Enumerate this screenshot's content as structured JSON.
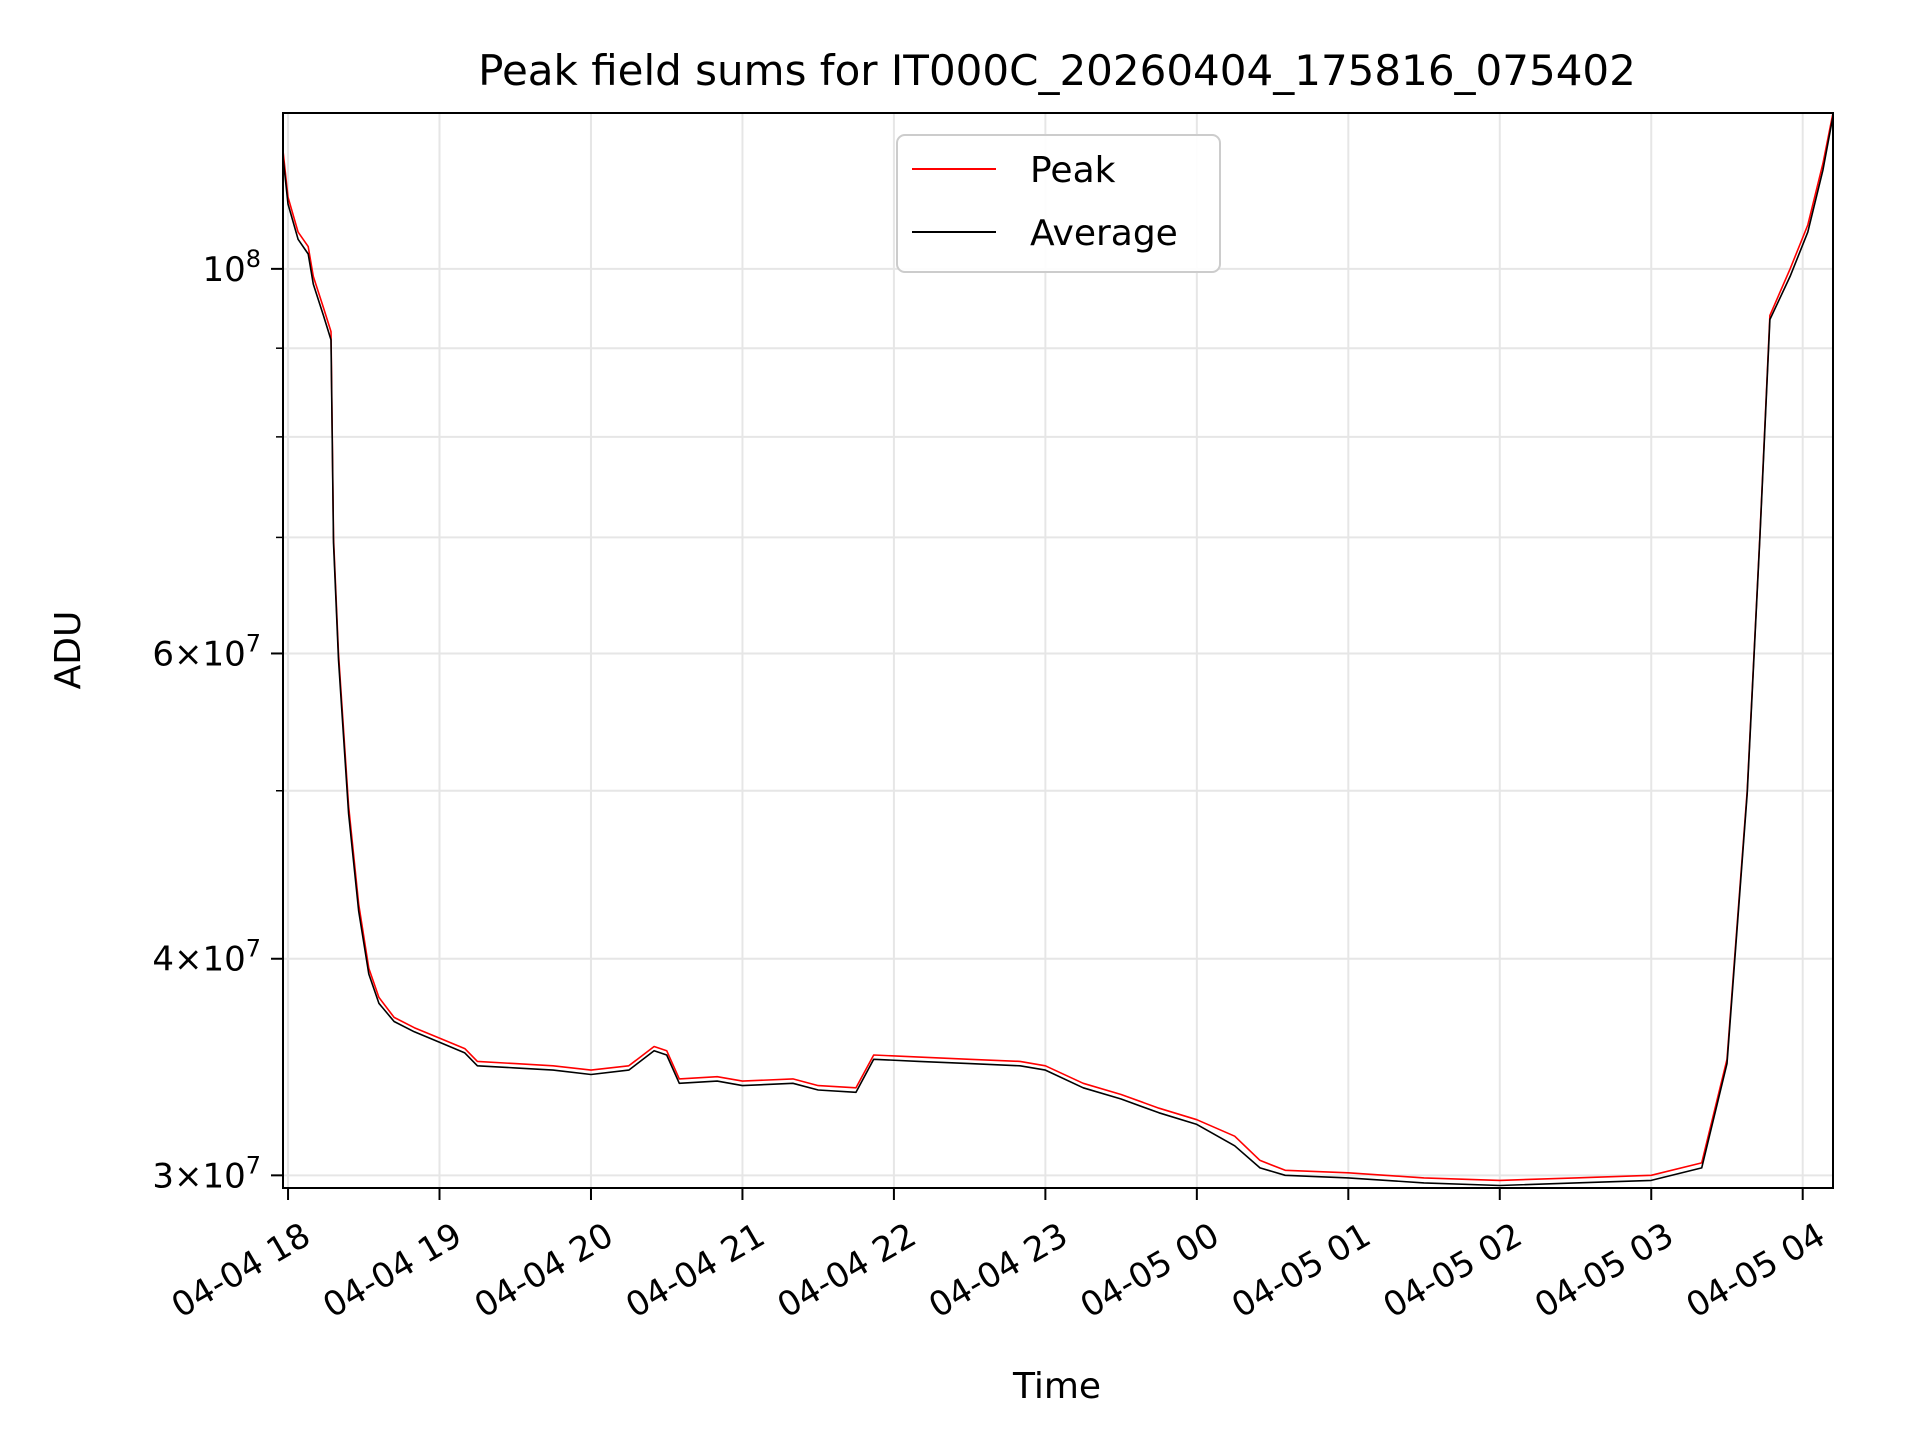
{
  "chart_data": {
    "type": "line",
    "title": "Peak field sums for IT000C_20260404_175816_075402",
    "xlabel": "Time",
    "ylabel": "ADU",
    "yscale": "log",
    "grid": true,
    "legend_placement": "upper center",
    "xlim": [
      "2026-04-04 17:58",
      "2026-04-05 04:12"
    ],
    "ylim": [
      29500000,
      123000000
    ],
    "x_ticks": [
      {
        "value": "2026-04-04 18:00",
        "label": "04-04 18"
      },
      {
        "value": "2026-04-04 19:00",
        "label": "04-04 19"
      },
      {
        "value": "2026-04-04 20:00",
        "label": "04-04 20"
      },
      {
        "value": "2026-04-04 21:00",
        "label": "04-04 21"
      },
      {
        "value": "2026-04-04 22:00",
        "label": "04-04 22"
      },
      {
        "value": "2026-04-04 23:00",
        "label": "04-04 23"
      },
      {
        "value": "2026-04-05 00:00",
        "label": "04-05 00"
      },
      {
        "value": "2026-04-05 01:00",
        "label": "04-05 01"
      },
      {
        "value": "2026-04-05 02:00",
        "label": "04-05 02"
      },
      {
        "value": "2026-04-05 03:00",
        "label": "04-05 03"
      },
      {
        "value": "2026-04-05 04:00",
        "label": "04-05 04"
      }
    ],
    "y_major_ticks": [
      {
        "value": 30000000,
        "mantissa": "3",
        "exp": "7"
      },
      {
        "value": 40000000,
        "mantissa": "4",
        "exp": "7"
      },
      {
        "value": 60000000,
        "mantissa": "6",
        "exp": "7"
      },
      {
        "value": 100000000,
        "mantissa": "",
        "exp": "8"
      }
    ],
    "y_minor_ticks": [
      50000000,
      70000000,
      80000000,
      90000000
    ],
    "series": [
      {
        "name": "Peak",
        "color": "#ff0000",
        "points": [
          [
            "2026-04-04 17:58",
            117000000
          ],
          [
            "2026-04-04 18:00",
            110000000
          ],
          [
            "2026-04-04 18:04",
            105000000
          ],
          [
            "2026-04-04 18:08",
            103000000
          ],
          [
            "2026-04-04 18:10",
            99000000
          ],
          [
            "2026-04-04 18:14",
            95000000
          ],
          [
            "2026-04-04 18:17",
            92000000
          ],
          [
            "2026-04-04 18:18",
            70000000
          ],
          [
            "2026-04-04 18:20",
            60000000
          ],
          [
            "2026-04-04 18:24",
            49000000
          ],
          [
            "2026-04-04 18:28",
            43000000
          ],
          [
            "2026-04-04 18:32",
            39500000
          ],
          [
            "2026-04-04 18:36",
            38000000
          ],
          [
            "2026-04-04 18:42",
            37000000
          ],
          [
            "2026-04-04 18:50",
            36500000
          ],
          [
            "2026-04-04 19:00",
            36000000
          ],
          [
            "2026-04-04 19:10",
            35500000
          ],
          [
            "2026-04-04 19:15",
            34900000
          ],
          [
            "2026-04-04 19:30",
            34800000
          ],
          [
            "2026-04-04 19:45",
            34700000
          ],
          [
            "2026-04-04 20:00",
            34500000
          ],
          [
            "2026-04-04 20:15",
            34700000
          ],
          [
            "2026-04-04 20:25",
            35600000
          ],
          [
            "2026-04-04 20:30",
            35400000
          ],
          [
            "2026-04-04 20:35",
            34100000
          ],
          [
            "2026-04-04 20:50",
            34200000
          ],
          [
            "2026-04-04 21:00",
            34000000
          ],
          [
            "2026-04-04 21:20",
            34100000
          ],
          [
            "2026-04-04 21:30",
            33800000
          ],
          [
            "2026-04-04 21:45",
            33700000
          ],
          [
            "2026-04-04 21:52",
            35200000
          ],
          [
            "2026-04-04 22:10",
            35100000
          ],
          [
            "2026-04-04 22:30",
            35000000
          ],
          [
            "2026-04-04 22:50",
            34900000
          ],
          [
            "2026-04-04 23:00",
            34700000
          ],
          [
            "2026-04-04 23:15",
            33900000
          ],
          [
            "2026-04-04 23:30",
            33400000
          ],
          [
            "2026-04-04 23:45",
            32800000
          ],
          [
            "2026-04-05 00:00",
            32300000
          ],
          [
            "2026-04-05 00:15",
            31600000
          ],
          [
            "2026-04-05 00:25",
            30600000
          ],
          [
            "2026-04-05 00:35",
            30200000
          ],
          [
            "2026-04-05 01:00",
            30100000
          ],
          [
            "2026-04-05 01:30",
            29900000
          ],
          [
            "2026-04-05 02:00",
            29800000
          ],
          [
            "2026-04-05 02:30",
            29900000
          ],
          [
            "2026-04-05 03:00",
            30000000
          ],
          [
            "2026-04-05 03:20",
            30500000
          ],
          [
            "2026-04-05 03:30",
            35000000
          ],
          [
            "2026-04-05 03:38",
            50000000
          ],
          [
            "2026-04-05 03:43",
            70000000
          ],
          [
            "2026-04-05 03:47",
            94000000
          ],
          [
            "2026-04-05 03:55",
            100000000
          ],
          [
            "2026-04-05 04:02",
            106000000
          ],
          [
            "2026-04-05 04:08",
            115000000
          ],
          [
            "2026-04-05 04:12",
            123000000
          ]
        ]
      },
      {
        "name": "Average",
        "color": "#000000",
        "points": [
          [
            "2026-04-04 17:58",
            116000000
          ],
          [
            "2026-04-04 18:00",
            109000000
          ],
          [
            "2026-04-04 18:04",
            104000000
          ],
          [
            "2026-04-04 18:08",
            102000000
          ],
          [
            "2026-04-04 18:10",
            98000000
          ],
          [
            "2026-04-04 18:14",
            94000000
          ],
          [
            "2026-04-04 18:17",
            91000000
          ],
          [
            "2026-04-04 18:18",
            69500000
          ],
          [
            "2026-04-04 18:20",
            59500000
          ],
          [
            "2026-04-04 18:24",
            48500000
          ],
          [
            "2026-04-04 18:28",
            42600000
          ],
          [
            "2026-04-04 18:32",
            39200000
          ],
          [
            "2026-04-04 18:36",
            37700000
          ],
          [
            "2026-04-04 18:42",
            36800000
          ],
          [
            "2026-04-04 18:50",
            36300000
          ],
          [
            "2026-04-04 19:00",
            35800000
          ],
          [
            "2026-04-04 19:10",
            35300000
          ],
          [
            "2026-04-04 19:15",
            34700000
          ],
          [
            "2026-04-04 19:30",
            34600000
          ],
          [
            "2026-04-04 19:45",
            34500000
          ],
          [
            "2026-04-04 20:00",
            34300000
          ],
          [
            "2026-04-04 20:15",
            34500000
          ],
          [
            "2026-04-04 20:25",
            35400000
          ],
          [
            "2026-04-04 20:30",
            35200000
          ],
          [
            "2026-04-04 20:35",
            33900000
          ],
          [
            "2026-04-04 20:50",
            34000000
          ],
          [
            "2026-04-04 21:00",
            33800000
          ],
          [
            "2026-04-04 21:20",
            33900000
          ],
          [
            "2026-04-04 21:30",
            33600000
          ],
          [
            "2026-04-04 21:45",
            33500000
          ],
          [
            "2026-04-04 21:52",
            35000000
          ],
          [
            "2026-04-04 22:10",
            34900000
          ],
          [
            "2026-04-04 22:30",
            34800000
          ],
          [
            "2026-04-04 22:50",
            34700000
          ],
          [
            "2026-04-04 23:00",
            34500000
          ],
          [
            "2026-04-04 23:15",
            33700000
          ],
          [
            "2026-04-04 23:30",
            33200000
          ],
          [
            "2026-04-04 23:45",
            32600000
          ],
          [
            "2026-04-05 00:00",
            32100000
          ],
          [
            "2026-04-05 00:15",
            31200000
          ],
          [
            "2026-04-05 00:25",
            30300000
          ],
          [
            "2026-04-05 00:35",
            30000000
          ],
          [
            "2026-04-05 01:00",
            29900000
          ],
          [
            "2026-04-05 01:30",
            29700000
          ],
          [
            "2026-04-05 02:00",
            29600000
          ],
          [
            "2026-04-05 02:30",
            29700000
          ],
          [
            "2026-04-05 03:00",
            29800000
          ],
          [
            "2026-04-05 03:20",
            30300000
          ],
          [
            "2026-04-05 03:30",
            34800000
          ],
          [
            "2026-04-05 03:38",
            49800000
          ],
          [
            "2026-04-05 03:43",
            69800000
          ],
          [
            "2026-04-05 03:47",
            93500000
          ],
          [
            "2026-04-05 03:55",
            99000000
          ],
          [
            "2026-04-05 04:02",
            105000000
          ],
          [
            "2026-04-05 04:08",
            114000000
          ],
          [
            "2026-04-05 04:12",
            122500000
          ]
        ]
      }
    ]
  }
}
